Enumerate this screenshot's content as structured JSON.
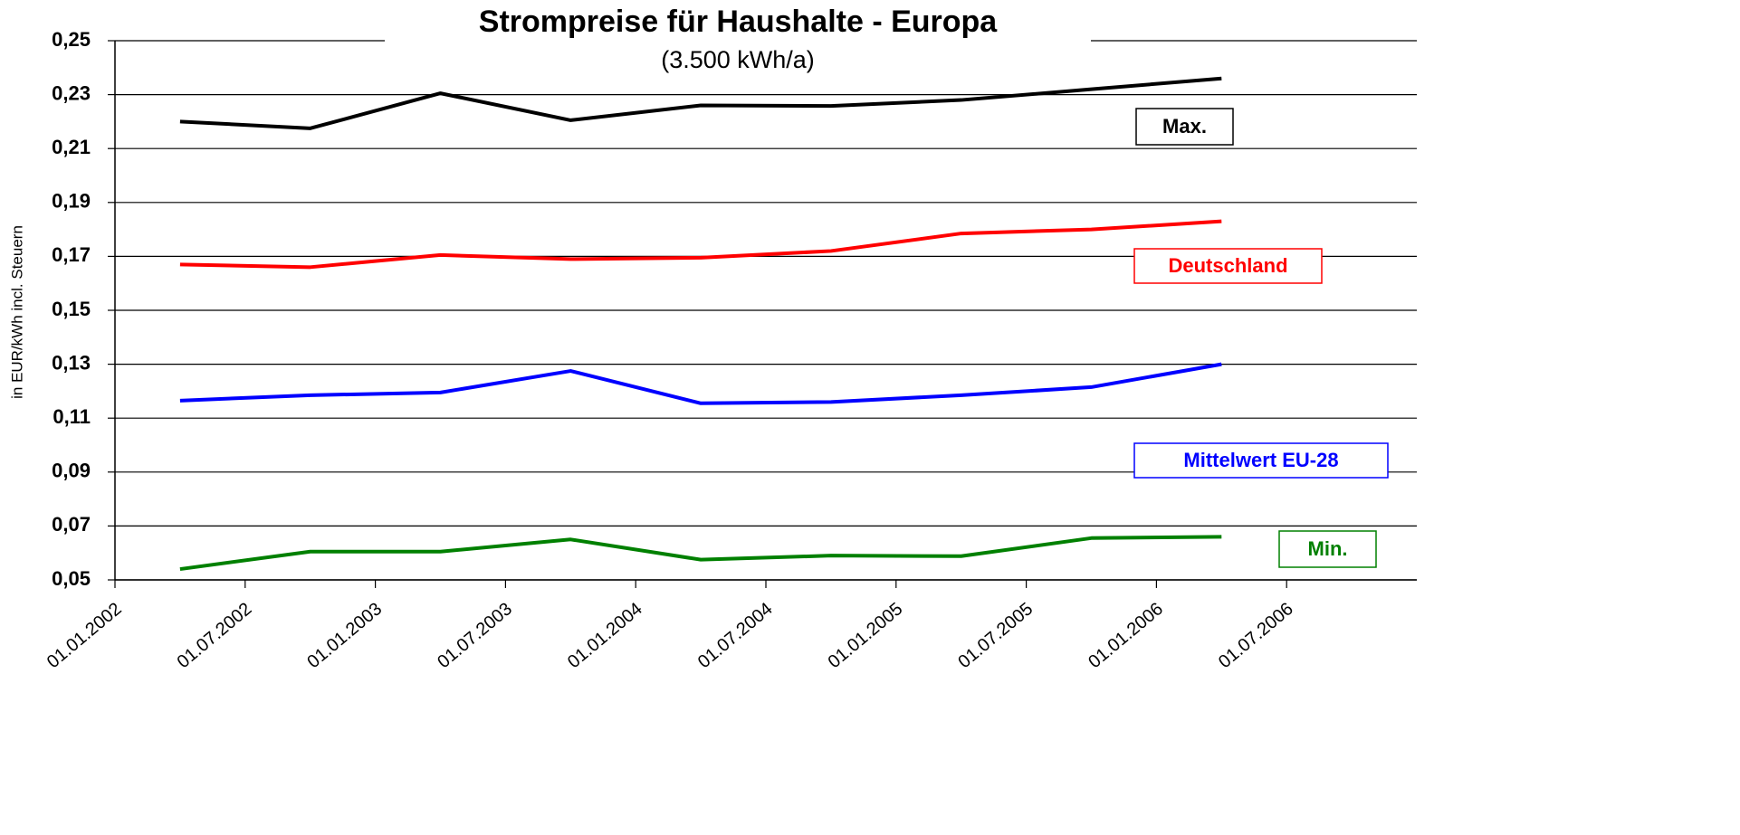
{
  "chart_data": {
    "type": "line",
    "title": "Strompreise für Haushalte - Europa",
    "subtitle": "(3.500 kWh/a)",
    "y_label": "in EUR/kWh incl. Steuern",
    "x": [
      0.5,
      1.5,
      2.5,
      3.5,
      4.5,
      5.5,
      6.5,
      7.5,
      8.5
    ],
    "xlim": [
      0,
      10
    ],
    "xticks": [
      {
        "value": 0,
        "label": "01.01.2002"
      },
      {
        "value": 1,
        "label": "01.07.2002"
      },
      {
        "value": 2,
        "label": "01.01.2003"
      },
      {
        "value": 3,
        "label": "01.07.2003"
      },
      {
        "value": 4,
        "label": "01.01.2004"
      },
      {
        "value": 5,
        "label": "01.07.2004"
      },
      {
        "value": 6,
        "label": "01.01.2005"
      },
      {
        "value": 7,
        "label": "01.07.2005"
      },
      {
        "value": 8,
        "label": "01.01.2006"
      },
      {
        "value": 9,
        "label": "01.07.2006"
      }
    ],
    "ylim": [
      0.05,
      0.25
    ],
    "yticks": [
      {
        "value": 0.05,
        "label": "0,05"
      },
      {
        "value": 0.07,
        "label": "0,07"
      },
      {
        "value": 0.09,
        "label": "0,09"
      },
      {
        "value": 0.11,
        "label": "0,11"
      },
      {
        "value": 0.13,
        "label": "0,13"
      },
      {
        "value": 0.15,
        "label": "0,15"
      },
      {
        "value": 0.17,
        "label": "0,17"
      },
      {
        "value": 0.19,
        "label": "0,19"
      },
      {
        "value": 0.21,
        "label": "0,21"
      },
      {
        "value": 0.23,
        "label": "0,23"
      },
      {
        "value": 0.25,
        "label": "0,25"
      }
    ],
    "grid": true,
    "series": [
      {
        "name": "Max.",
        "color": "#000000",
        "values": [
          0.22,
          0.2175,
          0.2305,
          0.2205,
          0.226,
          0.2258,
          0.228,
          0.232,
          0.236
        ]
      },
      {
        "name": "Deutschland",
        "color": "#ff0000",
        "values": [
          0.167,
          0.166,
          0.1705,
          0.169,
          0.1695,
          0.172,
          0.1785,
          0.18,
          0.183
        ]
      },
      {
        "name": "Mittelwert EU-28",
        "color": "#0000ff",
        "values": [
          0.1165,
          0.1185,
          0.1195,
          0.1275,
          0.1155,
          0.116,
          0.1185,
          0.1215,
          0.13
        ]
      },
      {
        "name": "Min.",
        "color": "#008000",
        "values": [
          0.054,
          0.0605,
          0.0605,
          0.065,
          0.0575,
          0.059,
          0.0588,
          0.0655,
          0.066
        ]
      }
    ]
  }
}
